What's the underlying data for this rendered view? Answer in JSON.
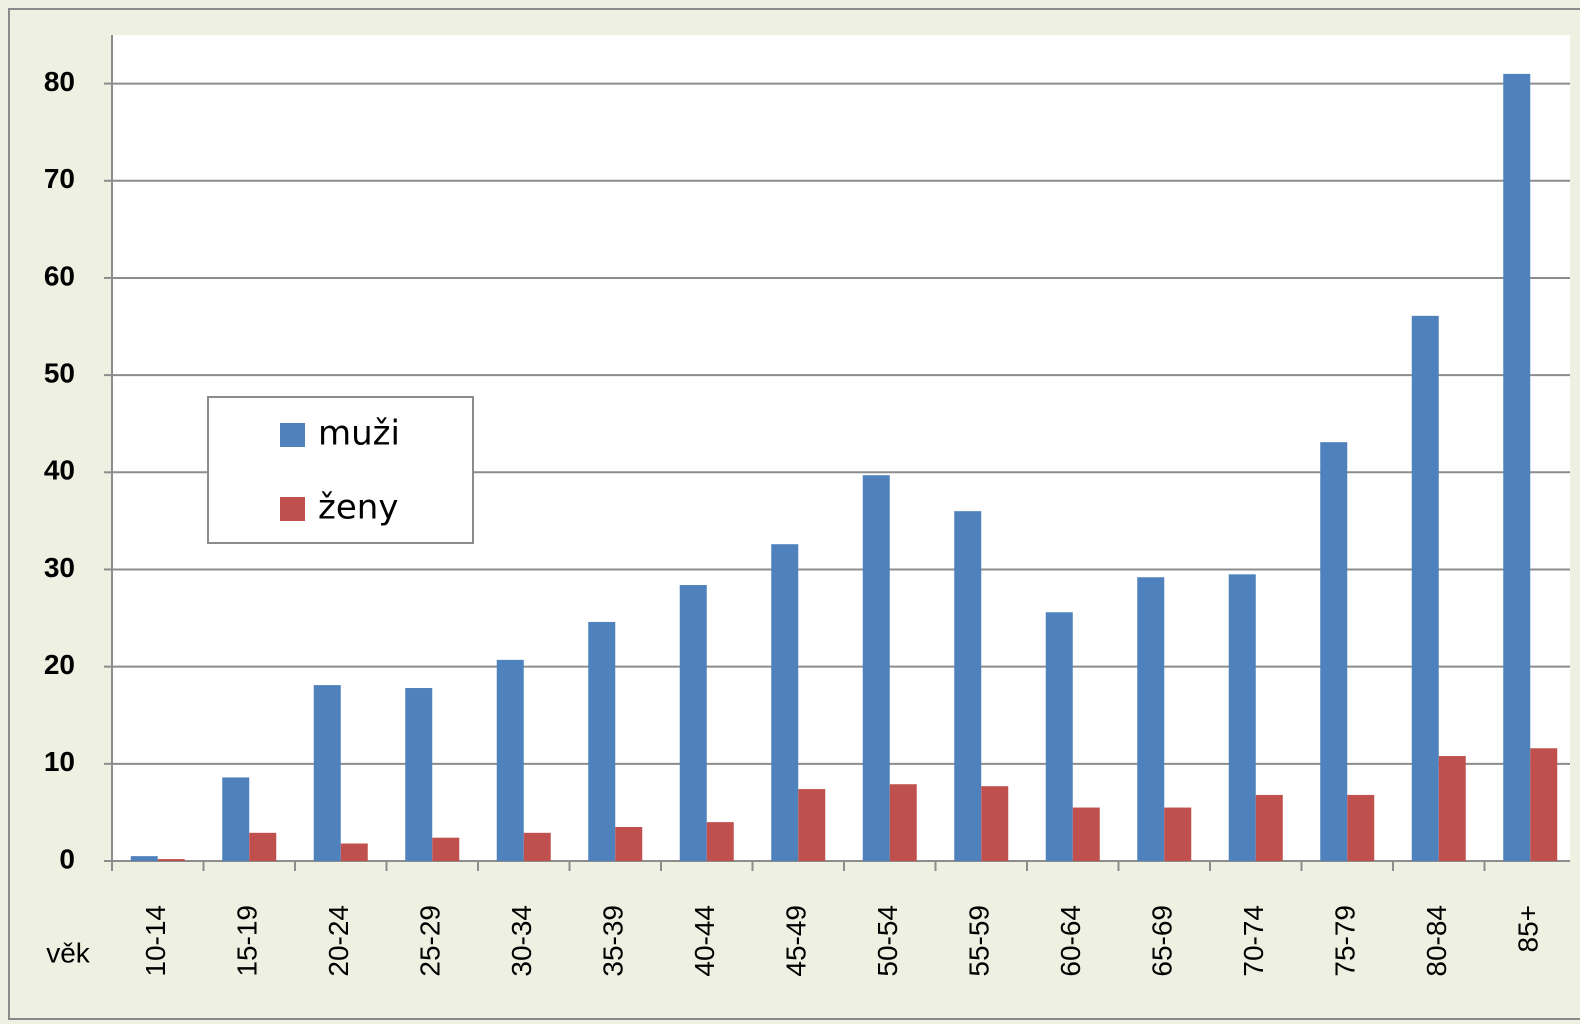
{
  "chart_data": {
    "type": "bar",
    "x_label": "věk",
    "categories": [
      "10-14",
      "15-19",
      "20-24",
      "25-29",
      "30-34",
      "35-39",
      "40-44",
      "45-49",
      "50-54",
      "55-59",
      "60-64",
      "65-69",
      "70-74",
      "75-79",
      "80-84",
      "85+"
    ],
    "series": [
      {
        "name": "muži",
        "color": "#4f81bd",
        "values": [
          0.5,
          8.6,
          18.1,
          17.8,
          20.7,
          24.6,
          28.4,
          32.6,
          39.7,
          36.0,
          25.6,
          29.2,
          29.5,
          43.1,
          56.1,
          81.0
        ]
      },
      {
        "name": "ženy",
        "color": "#c0504d",
        "values": [
          0.2,
          2.9,
          1.8,
          2.4,
          2.9,
          3.5,
          4.0,
          7.4,
          7.9,
          7.7,
          5.5,
          5.5,
          6.8,
          6.8,
          10.8,
          11.6
        ]
      }
    ],
    "ylim": [
      0,
      85
    ],
    "yticks": [
      0,
      10,
      20,
      30,
      40,
      50,
      60,
      70,
      80
    ],
    "grid": true,
    "legend_loc": "center left"
  }
}
